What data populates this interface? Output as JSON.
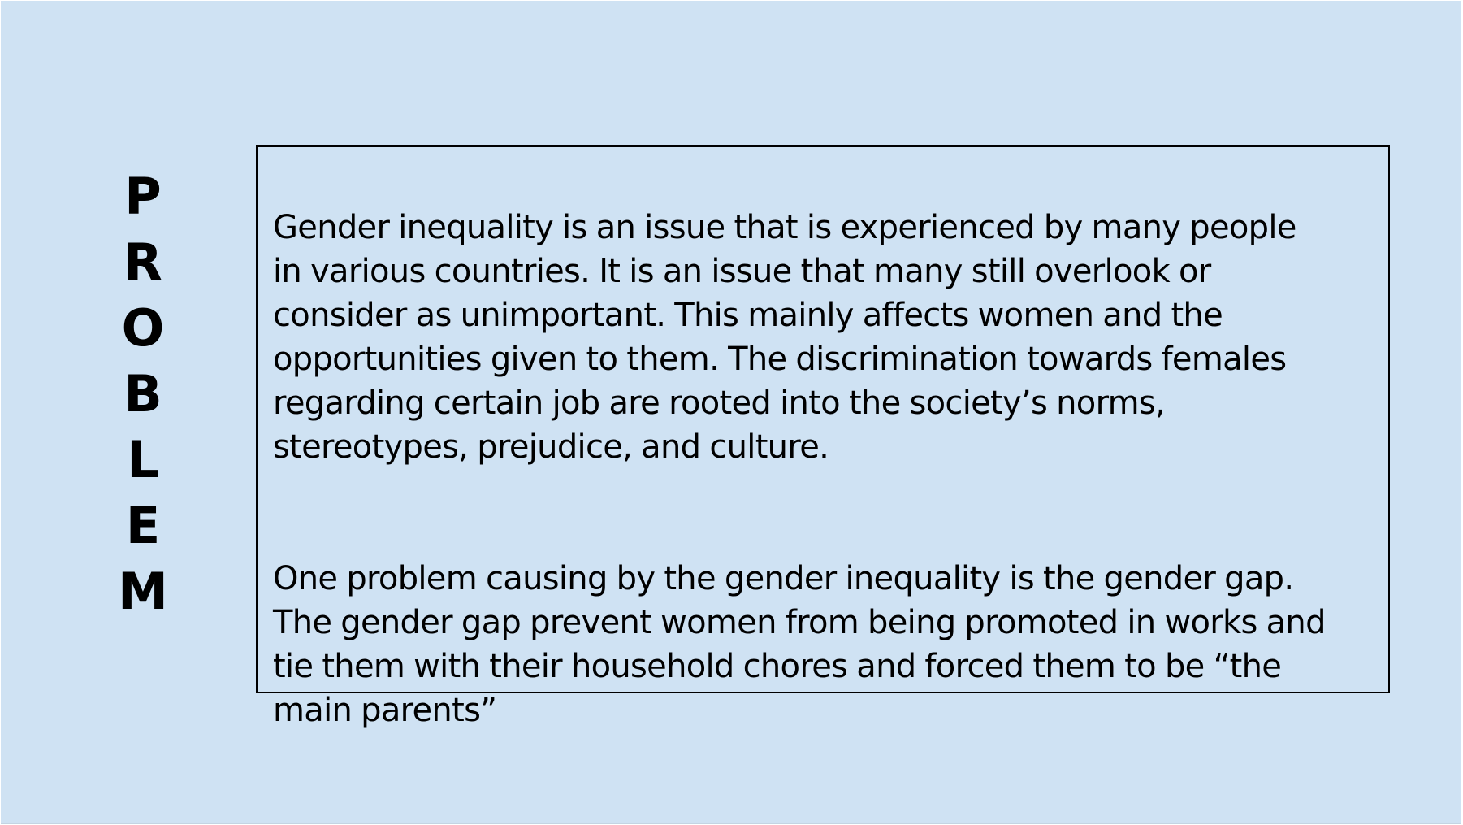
{
  "slide": {
    "background_color": "#cfe2f3",
    "title_letters": [
      "P",
      "R",
      "O",
      "B",
      "L",
      "E",
      "M"
    ],
    "paragraphs": [
      "Gender inequality is an issue that is experienced by many people\nin various countries. It is an issue that many still overlook or\nconsider as  unimportant. This mainly affects women and the\nopportunities given to them. The discrimination towards females\nregarding certain job are rooted into the society’s norms,\nstereotypes, prejudice, and culture.",
      "One problem causing by the gender inequality is the gender gap.\nThe gender gap prevent women from being promoted in works and\ntie them with their household chores and forced them to be “the\nmain parents”"
    ]
  }
}
